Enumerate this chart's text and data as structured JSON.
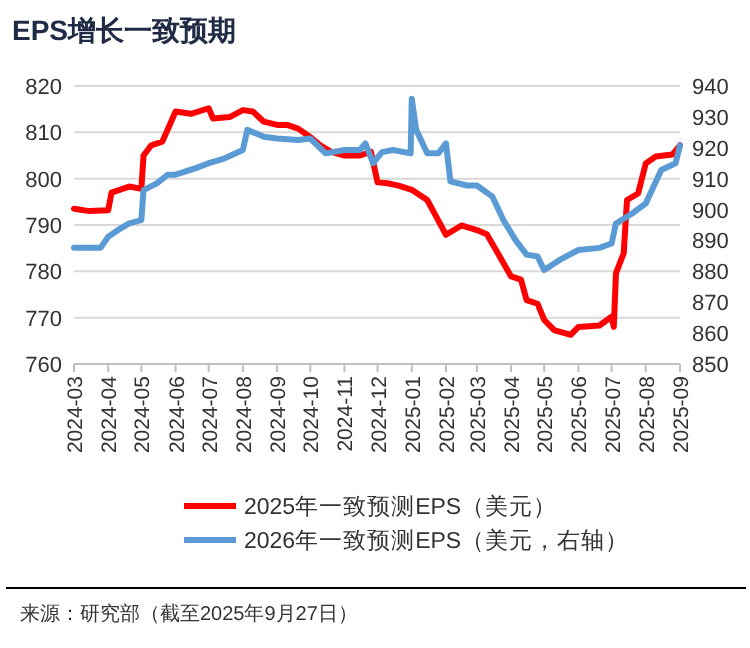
{
  "chart_data": {
    "type": "line",
    "title": "EPS增长一致预期",
    "xlim": [
      "2024-03-01",
      "2025-09-01"
    ],
    "xticks": [
      "2024-03",
      "2024-04",
      "2024-05",
      "2024-06",
      "2024-07",
      "2024-08",
      "2024-09",
      "2024-10",
      "2024-11",
      "2024-12",
      "2025-01",
      "2025-02",
      "2025-03",
      "2025-04",
      "2025-05",
      "2025-06",
      "2025-07",
      "2025-08",
      "2025-09"
    ],
    "ylim": [
      760,
      820
    ],
    "yticks": [
      760,
      770,
      780,
      790,
      800,
      810,
      820
    ],
    "y2lim": [
      850,
      940
    ],
    "y2ticks": [
      850,
      860,
      870,
      880,
      890,
      900,
      910,
      920,
      930,
      940
    ],
    "grid": "y",
    "legend": "bottom",
    "series": [
      {
        "name": "2025年一致预测EPS（美元）",
        "color": "#ff0000",
        "x": [
          "2024-03-01",
          "2024-03-15",
          "2024-04-01",
          "2024-04-04",
          "2024-04-20",
          "2024-05-01",
          "2024-05-03",
          "2024-05-10",
          "2024-05-20",
          "2024-05-28",
          "2024-06-01",
          "2024-06-15",
          "2024-07-01",
          "2024-07-05",
          "2024-07-20",
          "2024-08-01",
          "2024-08-10",
          "2024-08-20",
          "2024-09-01",
          "2024-09-10",
          "2024-09-20",
          "2024-10-01",
          "2024-10-10",
          "2024-10-20",
          "2024-11-01",
          "2024-11-15",
          "2024-11-25",
          "2024-12-01",
          "2024-12-10",
          "2024-12-20",
          "2025-01-01",
          "2025-01-15",
          "2025-01-25",
          "2025-02-01",
          "2025-02-15",
          "2025-03-01",
          "2025-03-10",
          "2025-03-20",
          "2025-04-01",
          "2025-04-10",
          "2025-04-15",
          "2025-04-25",
          "2025-05-01",
          "2025-05-10",
          "2025-05-25",
          "2025-06-01",
          "2025-06-20",
          "2025-07-01",
          "2025-07-03",
          "2025-07-05",
          "2025-07-12",
          "2025-07-15",
          "2025-07-25",
          "2025-08-01",
          "2025-08-10",
          "2025-08-25",
          "2025-09-01"
        ],
        "values": [
          793.5,
          793,
          793.2,
          797,
          798.3,
          797.8,
          805,
          807.2,
          808,
          812.3,
          814.5,
          814,
          815.2,
          813,
          813.3,
          814.8,
          814.5,
          812.3,
          811.6,
          811.6,
          810.8,
          809,
          807.2,
          805.8,
          805,
          805,
          805.8,
          799.2,
          799,
          798.5,
          797.6,
          795.4,
          791,
          787.9,
          789.9,
          788.9,
          788,
          783.9,
          778.9,
          778.2,
          773.8,
          773,
          769.5,
          767.3,
          766.3,
          768,
          768.3,
          770.2,
          768,
          779.6,
          783.9,
          795.4,
          796.8,
          803.3,
          804.8,
          805.2,
          807.2
        ]
      },
      {
        "name": "2026年一致预测EPS（美元，右轴）",
        "color": "#5b9bd5",
        "axis": "y2",
        "x": [
          "2024-03-01",
          "2024-03-25",
          "2024-04-01",
          "2024-04-10",
          "2024-04-20",
          "2024-05-01",
          "2024-05-03",
          "2024-05-15",
          "2024-05-25",
          "2024-06-01",
          "2024-06-20",
          "2024-07-01",
          "2024-07-15",
          "2024-08-01",
          "2024-08-05",
          "2024-08-20",
          "2024-09-01",
          "2024-09-20",
          "2024-10-01",
          "2024-10-15",
          "2024-11-01",
          "2024-11-15",
          "2024-11-20",
          "2024-11-27",
          "2024-12-05",
          "2024-12-15",
          "2024-12-31",
          "2025-01-01",
          "2025-01-05",
          "2025-01-15",
          "2025-01-25",
          "2025-02-01",
          "2025-02-05",
          "2025-02-20",
          "2025-03-01",
          "2025-03-15",
          "2025-03-25",
          "2025-04-05",
          "2025-04-15",
          "2025-04-25",
          "2025-05-01",
          "2025-05-15",
          "2025-06-01",
          "2025-06-20",
          "2025-07-01",
          "2025-07-05",
          "2025-07-20",
          "2025-08-01",
          "2025-08-15",
          "2025-08-28",
          "2025-09-01"
        ],
        "values": [
          887.6,
          887.6,
          891.2,
          893.4,
          895.5,
          896.6,
          906.3,
          908.5,
          911.3,
          911.3,
          913.5,
          915,
          916.5,
          919.3,
          925.8,
          923.6,
          923,
          922.5,
          923,
          918.2,
          919.3,
          919.3,
          921.4,
          915,
          918.6,
          919.3,
          918.2,
          935.9,
          925.8,
          918.2,
          918.2,
          921.4,
          909.1,
          907.8,
          907.8,
          904.2,
          896.6,
          890.1,
          885.4,
          884.8,
          880.4,
          883.7,
          886.9,
          887.6,
          889,
          895.5,
          898.8,
          902,
          912.8,
          915,
          920.8
        ]
      }
    ],
    "annotations": [
      "来源：研究部（截至2025年9月27日）"
    ]
  }
}
